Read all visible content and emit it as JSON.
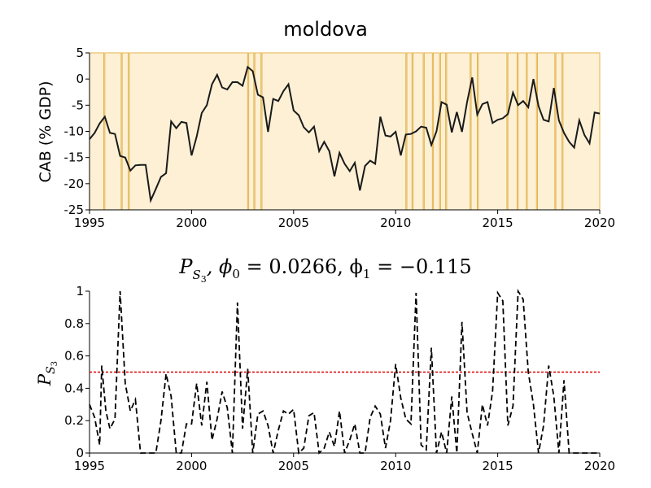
{
  "chart_data": [
    {
      "type": "line",
      "title": "moldova",
      "xlabel": "",
      "ylabel": "CAB (% GDP)",
      "xlim": [
        1995,
        2020
      ],
      "ylim": [
        -25,
        5
      ],
      "xticks": [
        1995,
        2000,
        2005,
        2010,
        2015,
        2020
      ],
      "yticks": [
        5,
        0,
        -5,
        -10,
        -15,
        -20,
        -25
      ],
      "shading_color": "#fdf0d5",
      "shading_edge_color": "#e3b34a",
      "line_color": "#1a1a1a",
      "highlight_line_color": "#888888",
      "unshaded_intervals": [
        [
          1995.7,
          1995.75
        ],
        [
          1996.55,
          1996.6
        ],
        [
          1996.9,
          1996.95
        ],
        [
          2002.75,
          2002.8
        ],
        [
          2003.05,
          2003.1
        ],
        [
          2003.4,
          2003.45
        ],
        [
          2010.5,
          2010.55
        ],
        [
          2010.8,
          2010.85
        ],
        [
          2011.35,
          2011.4
        ],
        [
          2011.8,
          2011.85
        ],
        [
          2012.15,
          2012.2
        ],
        [
          2012.45,
          2012.5
        ],
        [
          2013.65,
          2013.7
        ],
        [
          2014.0,
          2014.05
        ],
        [
          2015.45,
          2015.5
        ],
        [
          2015.95,
          2016.0
        ],
        [
          2016.4,
          2016.45
        ],
        [
          2016.9,
          2016.95
        ],
        [
          2017.8,
          2017.85
        ],
        [
          2018.15,
          2018.2
        ]
      ],
      "series": [
        {
          "name": "CAB",
          "x": [
            1995.0,
            1995.25,
            1995.5,
            1995.75,
            1996.0,
            1996.25,
            1996.5,
            1996.75,
            1997.0,
            1997.25,
            1997.5,
            1997.75,
            1998.0,
            1998.25,
            1998.5,
            1998.75,
            1999.0,
            1999.25,
            1999.5,
            1999.75,
            2000.0,
            2000.25,
            2000.5,
            2000.75,
            2001.0,
            2001.25,
            2001.5,
            2001.75,
            2002.0,
            2002.25,
            2002.5,
            2002.75,
            2003.0,
            2003.25,
            2003.5,
            2003.75,
            2004.0,
            2004.25,
            2004.5,
            2004.75,
            2005.0,
            2005.25,
            2005.5,
            2005.75,
            2006.0,
            2006.25,
            2006.5,
            2006.75,
            2007.0,
            2007.25,
            2007.5,
            2007.75,
            2008.0,
            2008.25,
            2008.5,
            2008.75,
            2009.0,
            2009.25,
            2009.5,
            2009.75,
            2010.0,
            2010.25,
            2010.5,
            2010.75,
            2011.0,
            2011.25,
            2011.5,
            2011.75,
            2012.0,
            2012.25,
            2012.5,
            2012.75,
            2013.0,
            2013.25,
            2013.5,
            2013.75,
            2014.0,
            2014.25,
            2014.5,
            2014.75,
            2015.0,
            2015.25,
            2015.5,
            2015.75,
            2016.0,
            2016.25,
            2016.5,
            2016.75,
            2017.0,
            2017.25,
            2017.5,
            2017.75,
            2018.0,
            2018.25,
            2018.5,
            2018.75,
            2019.0,
            2019.25,
            2019.5,
            2019.75,
            2020.0
          ],
          "values": [
            -11.5,
            -10.3,
            -8.5,
            -7.2,
            -10.3,
            -10.5,
            -14.7,
            -15.0,
            -17.5,
            -16.5,
            -16.4,
            -16.4,
            -23.2,
            -21.0,
            -18.7,
            -18.0,
            -8.1,
            -9.4,
            -8.2,
            -8.4,
            -14.6,
            -11.0,
            -6.5,
            -5.0,
            -1.0,
            0.8,
            -1.6,
            -2.0,
            -0.6,
            -0.6,
            -1.3,
            2.3,
            1.5,
            -3.0,
            -3.5,
            -10.1,
            -3.8,
            -4.2,
            -2.3,
            -1.0,
            -6.0,
            -6.9,
            -9.2,
            -10.2,
            -9.1,
            -13.8,
            -12.0,
            -13.8,
            -18.6,
            -14.1,
            -16.2,
            -17.6,
            -16.0,
            -21.3,
            -16.6,
            -15.6,
            -16.2,
            -7.2,
            -10.8,
            -11.0,
            -10.1,
            -14.6,
            -10.6,
            -10.5,
            -10.0,
            -9.1,
            -9.3,
            -12.6,
            -10.0,
            -4.4,
            -4.9,
            -10.2,
            -6.3,
            -10.1,
            -4.4,
            0.3,
            -6.8,
            -4.8,
            -4.4,
            -8.4,
            -7.8,
            -7.5,
            -6.7,
            -2.6,
            -5.0,
            -4.2,
            -5.4,
            0.0,
            -5.2,
            -7.8,
            -8.1,
            -1.7,
            -7.9,
            -10.3,
            -12.0,
            -13.1,
            -7.9,
            -10.7,
            -12.3,
            -6.4,
            -6.6
          ]
        }
      ]
    },
    {
      "type": "line",
      "title": "$P_{S_3}, \\phi_0 = 0.0266, \\phi_1 = -0.115$",
      "title_parts": {
        "P": "P",
        "S": "S",
        "sub3": "3",
        "rest": ", ϕ",
        "phi0_sub": "0",
        "eq0": " = 0.0266, ϕ",
        "phi1_sub": "1",
        "eq1": " = −0.115"
      },
      "xlabel": "",
      "ylabel": "P_{S_3}",
      "ylabel_parts": {
        "P": "P",
        "S": "S",
        "sub3": "3"
      },
      "xlim": [
        1995,
        2020
      ],
      "ylim": [
        0,
        1
      ],
      "xticks": [
        1995,
        2000,
        2005,
        2010,
        2015,
        2020
      ],
      "yticks": [
        0,
        0.2,
        0.4,
        0.6,
        0.8,
        1
      ],
      "ytick_labels": [
        "0",
        "0.2",
        "0.4",
        "0.6",
        "0.8",
        "1"
      ],
      "threshold": 0.5,
      "threshold_color": "#dd0000",
      "line_color": "#000000",
      "series": [
        {
          "name": "P_S3",
          "x": [
            1995.0,
            1995.25,
            1995.5,
            1995.6,
            1995.8,
            1996.0,
            1996.25,
            1996.5,
            1996.75,
            1997.0,
            1997.25,
            1997.5,
            1997.75,
            1998.0,
            1998.25,
            1998.5,
            1998.75,
            1999.0,
            1999.25,
            1999.5,
            1999.75,
            2000.0,
            2000.25,
            2000.5,
            2000.75,
            2001.0,
            2001.25,
            2001.5,
            2001.75,
            2002.0,
            2002.25,
            2002.5,
            2002.75,
            2003.0,
            2003.25,
            2003.5,
            2003.75,
            2004.0,
            2004.25,
            2004.5,
            2004.75,
            2005.0,
            2005.25,
            2005.5,
            2005.75,
            2006.0,
            2006.25,
            2006.5,
            2006.75,
            2007.0,
            2007.25,
            2007.5,
            2007.75,
            2008.0,
            2008.25,
            2008.5,
            2008.75,
            2009.0,
            2009.25,
            2009.5,
            2009.75,
            2010.0,
            2010.25,
            2010.5,
            2010.75,
            2011.0,
            2011.25,
            2011.5,
            2011.75,
            2012.0,
            2012.25,
            2012.5,
            2012.75,
            2013.0,
            2013.25,
            2013.5,
            2013.75,
            2014.0,
            2014.25,
            2014.5,
            2014.75,
            2015.0,
            2015.25,
            2015.5,
            2015.75,
            2016.0,
            2016.25,
            2016.5,
            2016.75,
            2017.0,
            2017.25,
            2017.5,
            2017.75,
            2018.0,
            2018.25,
            2018.5,
            2018.75,
            2019.0,
            2019.25,
            2019.5,
            2019.75,
            2020.0
          ],
          "values": [
            0.3,
            0.22,
            0.05,
            0.54,
            0.26,
            0.15,
            0.21,
            1.0,
            0.43,
            0.26,
            0.33,
            0.0,
            0.0,
            0.0,
            0.0,
            0.2,
            0.49,
            0.35,
            0.0,
            0.0,
            0.18,
            0.18,
            0.43,
            0.17,
            0.44,
            0.08,
            0.21,
            0.38,
            0.28,
            0.0,
            0.93,
            0.15,
            0.52,
            0.0,
            0.24,
            0.26,
            0.17,
            0.0,
            0.14,
            0.26,
            0.24,
            0.27,
            0.0,
            0.03,
            0.23,
            0.25,
            0.0,
            0.03,
            0.13,
            0.04,
            0.26,
            0.0,
            0.08,
            0.18,
            0.0,
            0.0,
            0.22,
            0.29,
            0.24,
            0.03,
            0.2,
            0.55,
            0.34,
            0.21,
            0.18,
            0.99,
            0.05,
            0.02,
            0.65,
            0.0,
            0.13,
            0.0,
            0.35,
            0.0,
            0.81,
            0.25,
            0.12,
            0.0,
            0.3,
            0.17,
            0.38,
            0.99,
            0.94,
            0.17,
            0.29,
            1.0,
            0.95,
            0.5,
            0.3,
            0.0,
            0.17,
            0.54,
            0.35,
            0.0,
            0.45,
            0.0,
            0.0,
            0.0,
            0.0,
            0.0,
            0.0,
            0.0
          ]
        }
      ]
    }
  ]
}
